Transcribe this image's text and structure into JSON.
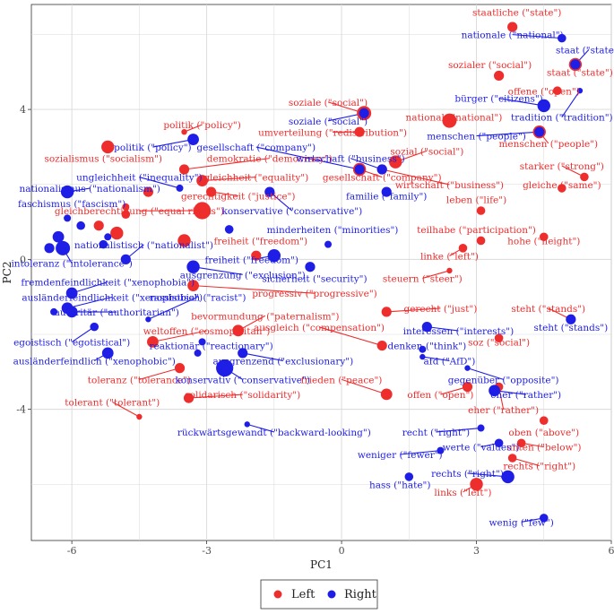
{
  "chart_data": {
    "type": "scatter",
    "xlabel": "PC1",
    "ylabel": "PC2",
    "xlim": [
      -6.9,
      6.0
    ],
    "ylim": [
      -7.5,
      6.8
    ],
    "xticks": [
      -6,
      -3,
      0,
      3,
      6
    ],
    "yticks": [
      -4,
      0,
      4
    ],
    "grid": true,
    "legend_position": "bottom",
    "colors": {
      "Left": "#ee2d2d",
      "Right": "#1e1ee6"
    },
    "series": [
      {
        "name": "Left",
        "points": [
          {
            "label": "staatliche (\"state\")",
            "x": 3.8,
            "y": 6.2,
            "size": 5,
            "lx": 3.9,
            "ly": 6.5
          },
          {
            "label": "sozialer (\"social\")",
            "x": 3.5,
            "y": 4.9,
            "size": 5,
            "lx": 3.3,
            "ly": 5.1
          },
          {
            "label": "offene (\"open\")",
            "x": 4.8,
            "y": 4.5,
            "size": 4,
            "lx": 4.5,
            "ly": 4.4
          },
          {
            "label": "staat (\"state\")",
            "x": 5.2,
            "y": 5.2,
            "size": 7,
            "lx": 5.3,
            "ly": 4.9
          },
          {
            "label": "national (\"national\")",
            "x": 2.4,
            "y": 3.7,
            "size": 8,
            "lx": 2.5,
            "ly": 3.7
          },
          {
            "label": "soziale (\"social\")",
            "x": 0.5,
            "y": 3.9,
            "size": 8,
            "lx": -0.3,
            "ly": 4.1
          },
          {
            "label": "umverteilung (\"redistribution\")",
            "x": 0.4,
            "y": 3.4,
            "size": 5,
            "lx": -0.2,
            "ly": 3.3
          },
          {
            "label": "sozial (\"social\")",
            "x": 1.2,
            "y": 2.6,
            "size": 7,
            "lx": 1.9,
            "ly": 2.8
          },
          {
            "label": "gesellschaft (\"company\")",
            "x": 0.4,
            "y": 2.4,
            "size": 7,
            "lx": 0.9,
            "ly": 2.1
          },
          {
            "label": "wirtschaft (\"business\")",
            "x": 0.9,
            "y": 2.4,
            "size": 5,
            "lx": 2.4,
            "ly": 1.9
          },
          {
            "label": "menschen (\"people\")",
            "x": 4.4,
            "y": 3.4,
            "size": 7,
            "lx": 4.6,
            "ly": 3.0
          },
          {
            "label": "starker (\"strong\")",
            "x": 5.4,
            "y": 2.2,
            "size": 4,
            "lx": 4.9,
            "ly": 2.4
          },
          {
            "label": "gleiche (\"same\")",
            "x": 4.9,
            "y": 1.9,
            "size": 4,
            "lx": 4.9,
            "ly": 1.9
          },
          {
            "label": "leben (\"life\")",
            "x": 3.1,
            "y": 1.3,
            "size": 4,
            "lx": 3.0,
            "ly": 1.5
          },
          {
            "label": "teilhabe (\"participation\")",
            "x": 3.1,
            "y": 0.5,
            "size": 4,
            "lx": 3.0,
            "ly": 0.7
          },
          {
            "label": "hohe (\"height\")",
            "x": 4.5,
            "y": 0.6,
            "size": 4,
            "lx": 4.5,
            "ly": 0.4
          },
          {
            "label": "linke (\"left\")",
            "x": 2.7,
            "y": 0.3,
            "size": 4,
            "lx": 2.4,
            "ly": 0.0
          },
          {
            "label": "steuern (\"steer\")",
            "x": 2.4,
            "y": -0.3,
            "size": 2,
            "lx": 1.8,
            "ly": -0.6
          },
          {
            "label": "gerecht (\"just\")",
            "x": 1.0,
            "y": -1.4,
            "size": 5,
            "lx": 2.2,
            "ly": -1.4
          },
          {
            "label": "ausgleich (\"compensation\")",
            "x": 0.9,
            "y": -2.3,
            "size": 5,
            "lx": -0.5,
            "ly": -1.9
          },
          {
            "label": "soz (\"social\")",
            "x": 3.5,
            "y": -2.1,
            "size": 4,
            "lx": 3.5,
            "ly": -2.3
          },
          {
            "label": "steht (\"stands\")",
            "x": 5.1,
            "y": -1.6,
            "size": 4,
            "lx": 4.6,
            "ly": -1.4
          },
          {
            "label": "frieden (\"peace\")",
            "x": 1.0,
            "y": -3.6,
            "size": 6,
            "lx": 0.0,
            "ly": -3.3
          },
          {
            "label": "offen (\"open\")",
            "x": 2.8,
            "y": -3.4,
            "size": 5,
            "lx": 2.2,
            "ly": -3.7
          },
          {
            "label": "eher (\"rather\")",
            "x": 3.5,
            "y": -3.4,
            "size": 4,
            "lx": 3.6,
            "ly": -4.1
          },
          {
            "label": "oben (\"above\")",
            "x": 4.5,
            "y": -4.3,
            "size": 4,
            "lx": 4.5,
            "ly": -4.7
          },
          {
            "label": "unten (\"below\")",
            "x": 4.0,
            "y": -4.9,
            "size": 4,
            "lx": 4.5,
            "ly": -5.1
          },
          {
            "label": "rechts (\"right\")",
            "x": 3.8,
            "y": -5.3,
            "size": 4,
            "lx": 4.4,
            "ly": -5.6
          },
          {
            "label": "links (\"left\")",
            "x": 3.0,
            "y": -6.0,
            "size": 7,
            "lx": 2.7,
            "ly": -6.3
          },
          {
            "label": "politik (\"policy\")",
            "x": -3.5,
            "y": 3.4,
            "size": 2,
            "lx": -3.1,
            "ly": 3.5
          },
          {
            "label": "sozialismus (\"socialism\")",
            "x": -5.2,
            "y": 3.0,
            "size": 7,
            "lx": -5.3,
            "ly": 2.6
          },
          {
            "label": "demokratie (\"democracy\")",
            "x": -3.5,
            "y": 2.4,
            "size": 5,
            "lx": -1.6,
            "ly": 2.6
          },
          {
            "label": "gleichheit (\"equality\")",
            "x": -3.1,
            "y": 2.1,
            "size": 6,
            "lx": -1.9,
            "ly": 2.1
          },
          {
            "label": "gerechtigkeit (\"justice\")",
            "x": -2.9,
            "y": 1.8,
            "size": 5,
            "lx": -2.3,
            "ly": 1.6
          },
          {
            "label": "gleichberechtigung (\"equal rights\")",
            "x": -3.1,
            "y": 1.3,
            "size": 10,
            "lx": -4.5,
            "ly": 1.2
          },
          {
            "label": "freiheit (\"freedom\")",
            "x": -1.9,
            "y": 0.1,
            "size": 5,
            "lx": -1.8,
            "ly": 0.4
          },
          {
            "label": "progressiv (\"progressive\")",
            "x": -3.3,
            "y": -0.7,
            "size": 6,
            "lx": -0.6,
            "ly": -1.0
          },
          {
            "label": "bevormundung (\"paternalism\")",
            "x": -2.3,
            "y": -1.9,
            "size": 6,
            "lx": -1.7,
            "ly": -1.6
          },
          {
            "label": "weltoffen (\"cosmopolitan\")",
            "x": -4.2,
            "y": -2.2,
            "size": 6,
            "lx": -3.0,
            "ly": -2.0
          },
          {
            "label": "toleranz (\"tolerance\")",
            "x": -3.6,
            "y": -2.9,
            "size": 5,
            "lx": -4.5,
            "ly": -3.3
          },
          {
            "label": "solidarisch (\"solidarity\")",
            "x": -3.4,
            "y": -3.7,
            "size": 5,
            "lx": -2.2,
            "ly": -3.7
          },
          {
            "label": "tolerant (\"tolerant\")",
            "x": -4.5,
            "y": -4.2,
            "size": 2,
            "lx": -5.1,
            "ly": -3.9
          },
          {
            "label": "",
            "x": -4.3,
            "y": 1.8,
            "size": 5
          },
          {
            "label": "",
            "x": -4.8,
            "y": 1.4,
            "size": 3
          },
          {
            "label": "",
            "x": -5.0,
            "y": 0.7,
            "size": 7
          },
          {
            "label": "",
            "x": -3.5,
            "y": 0.5,
            "size": 7
          },
          {
            "label": "",
            "x": -5.4,
            "y": 0.9,
            "size": 5
          },
          {
            "label": "",
            "x": -4.8,
            "y": 1.2,
            "size": 4
          }
        ]
      },
      {
        "name": "Right",
        "points": [
          {
            "label": "nationale (\"national\")",
            "x": 4.9,
            "y": 5.9,
            "size": 4,
            "lx": 3.8,
            "ly": 5.9
          },
          {
            "label": "staat (\"state\")",
            "x": 5.2,
            "y": 5.2,
            "size": 5,
            "lx": 5.5,
            "ly": 5.5
          },
          {
            "label": "bürger (\"citizens\")",
            "x": 4.5,
            "y": 4.1,
            "size": 7,
            "lx": 3.5,
            "ly": 4.2
          },
          {
            "label": "tradition (\"tradition\")",
            "x": 5.3,
            "y": 4.5,
            "size": 2,
            "lx": 4.9,
            "ly": 3.7
          },
          {
            "label": "soziale (\"social\")",
            "x": 0.5,
            "y": 3.9,
            "size": 5,
            "lx": -0.3,
            "ly": 3.6
          },
          {
            "label": "menschen (\"people\")",
            "x": 4.4,
            "y": 3.4,
            "size": 5,
            "lx": 3.0,
            "ly": 3.2
          },
          {
            "label": "wirtschaft (\"business\")",
            "x": 0.9,
            "y": 2.4,
            "size": 5,
            "lx": 0.2,
            "ly": 2.6
          },
          {
            "label": "gesellschaft (\"company\")",
            "x": 0.4,
            "y": 2.4,
            "size": 5,
            "lx": -1.9,
            "ly": 2.9
          },
          {
            "label": "politik (\"policy\")",
            "x": -3.3,
            "y": 3.2,
            "size": 6,
            "lx": -4.2,
            "ly": 2.9
          },
          {
            "label": "familie (\"family\")",
            "x": 1.0,
            "y": 1.8,
            "size": 5,
            "lx": 1.0,
            "ly": 1.6
          },
          {
            "label": "ungleichheit (\"inequality\")",
            "x": -3.6,
            "y": 1.9,
            "size": 3,
            "lx": -4.5,
            "ly": 2.1
          },
          {
            "label": "nationalismus (\"nationalism\")",
            "x": -6.1,
            "y": 1.8,
            "size": 7,
            "lx": -5.6,
            "ly": 1.8
          },
          {
            "label": "faschismus (\"fascism\")",
            "x": -6.1,
            "y": 1.1,
            "size": 3,
            "lx": -6.0,
            "ly": 1.4
          },
          {
            "label": "konservative (\"conservative\")",
            "x": -1.6,
            "y": 1.8,
            "size": 5,
            "lx": -1.1,
            "ly": 1.2
          },
          {
            "label": "minderheiten (\"minorities\")",
            "x": -0.3,
            "y": 0.4,
            "size": 3,
            "lx": -0.2,
            "ly": 0.7
          },
          {
            "label": "freiheit (\"freedom\")",
            "x": -1.5,
            "y": 0.1,
            "size": 7,
            "lx": -2.0,
            "ly": -0.1
          },
          {
            "label": "intoleranz (\"intolerance\")",
            "x": -6.2,
            "y": 0.3,
            "size": 8,
            "lx": -6.0,
            "ly": -0.2
          },
          {
            "label": "nationalistisch (\"nationalist\")",
            "x": -4.8,
            "y": 0.0,
            "size": 5,
            "lx": -4.4,
            "ly": 0.3
          },
          {
            "label": "ausgrenzung (\"exclusion\")",
            "x": -3.3,
            "y": -0.2,
            "size": 7,
            "lx": -2.2,
            "ly": -0.5
          },
          {
            "label": "sicherheit (\"security\")",
            "x": -0.7,
            "y": -0.2,
            "size": 5,
            "lx": -0.6,
            "ly": -0.6
          },
          {
            "label": "fremdenfeindlichkeit (\"xenophobia\")",
            "x": -6.0,
            "y": -0.9,
            "size": 6,
            "lx": -5.2,
            "ly": -0.7
          },
          {
            "label": "ausländerfeindlichkeit (\"xenophobia\")",
            "x": -6.1,
            "y": -1.3,
            "size": 6,
            "lx": -5.1,
            "ly": -1.1
          },
          {
            "label": "rassistisch (\"racist\")",
            "x": -4.3,
            "y": -1.6,
            "size": 2,
            "lx": -3.2,
            "ly": -1.1
          },
          {
            "label": "autoritär (\"authoritarian\")",
            "x": -6.0,
            "y": -1.4,
            "size": 6,
            "lx": -5.0,
            "ly": -1.5
          },
          {
            "label": "egoistisch (\"egotistical\")",
            "x": -5.5,
            "y": -1.8,
            "size": 4,
            "lx": -6.0,
            "ly": -2.3
          },
          {
            "label": "reaktionär (\"reactionary\")",
            "x": -3.1,
            "y": -2.2,
            "size": 3,
            "lx": -2.9,
            "ly": -2.4
          },
          {
            "label": "ausgrenzend (\"exclusionary\")",
            "x": -2.2,
            "y": -2.5,
            "size": 5,
            "lx": -1.3,
            "ly": -2.8
          },
          {
            "label": "ausländerfeindlich (\"xenophobic\")",
            "x": -5.2,
            "y": -2.5,
            "size": 6,
            "lx": -5.5,
            "ly": -2.8
          },
          {
            "label": "konservativ (\"conservative\")",
            "x": -2.6,
            "y": -2.9,
            "size": 10,
            "lx": -2.2,
            "ly": -3.3
          },
          {
            "label": "rückwärtsgewandt (\"backward-looking\")",
            "x": -2.1,
            "y": -4.4,
            "size": 2,
            "lx": -1.5,
            "ly": -4.7
          },
          {
            "label": "interessen (\"interests\")",
            "x": 1.9,
            "y": -1.8,
            "size": 5,
            "lx": 2.6,
            "ly": -2.0
          },
          {
            "label": "steht (\"stands\")",
            "x": 5.1,
            "y": -1.6,
            "size": 5,
            "lx": 5.1,
            "ly": -1.9
          },
          {
            "label": "denken (\"think\")",
            "x": 1.8,
            "y": -2.4,
            "size": 3,
            "lx": 1.9,
            "ly": -2.4
          },
          {
            "label": "afd (\"AfD\")",
            "x": 1.8,
            "y": -2.6,
            "size": 2,
            "lx": 2.4,
            "ly": -2.8
          },
          {
            "label": "gegenüber (\"opposite\")",
            "x": 2.8,
            "y": -2.9,
            "size": 2,
            "lx": 3.6,
            "ly": -3.3
          },
          {
            "label": "eher (\"rather\")",
            "x": 3.4,
            "y": -3.5,
            "size": 6,
            "lx": 4.1,
            "ly": -3.7
          },
          {
            "label": "recht (\"right\")",
            "x": 3.1,
            "y": -4.5,
            "size": 3,
            "lx": 2.1,
            "ly": -4.7
          },
          {
            "label": "werte (\"values\")",
            "x": 3.5,
            "y": -4.9,
            "size": 4,
            "lx": 3.1,
            "ly": -5.1
          },
          {
            "label": "weniger (\"fewer\")",
            "x": 2.2,
            "y": -5.1,
            "size": 3,
            "lx": 1.3,
            "ly": -5.3
          },
          {
            "label": "rechts (\"right\")",
            "x": 3.7,
            "y": -5.8,
            "size": 7,
            "lx": 2.8,
            "ly": -5.8
          },
          {
            "label": "hass (\"hate\")",
            "x": 1.5,
            "y": -5.8,
            "size": 4,
            "lx": 1.3,
            "ly": -6.1
          },
          {
            "label": "wenig (\"few\")",
            "x": 4.5,
            "y": -6.9,
            "size": 4,
            "lx": 4.0,
            "ly": -7.1
          },
          {
            "label": "",
            "x": -6.3,
            "y": 0.6,
            "size": 6
          },
          {
            "label": "",
            "x": -6.5,
            "y": 0.3,
            "size": 5
          },
          {
            "label": "",
            "x": -5.8,
            "y": 0.9,
            "size": 4
          },
          {
            "label": "",
            "x": -5.2,
            "y": 0.6,
            "size": 3
          },
          {
            "label": "",
            "x": -5.3,
            "y": 0.4,
            "size": 4
          },
          {
            "label": "",
            "x": -6.4,
            "y": -1.4,
            "size": 3
          },
          {
            "label": "",
            "x": -2.5,
            "y": 0.8,
            "size": 4
          },
          {
            "label": "",
            "x": -3.2,
            "y": -2.5,
            "size": 3
          }
        ]
      }
    ]
  }
}
